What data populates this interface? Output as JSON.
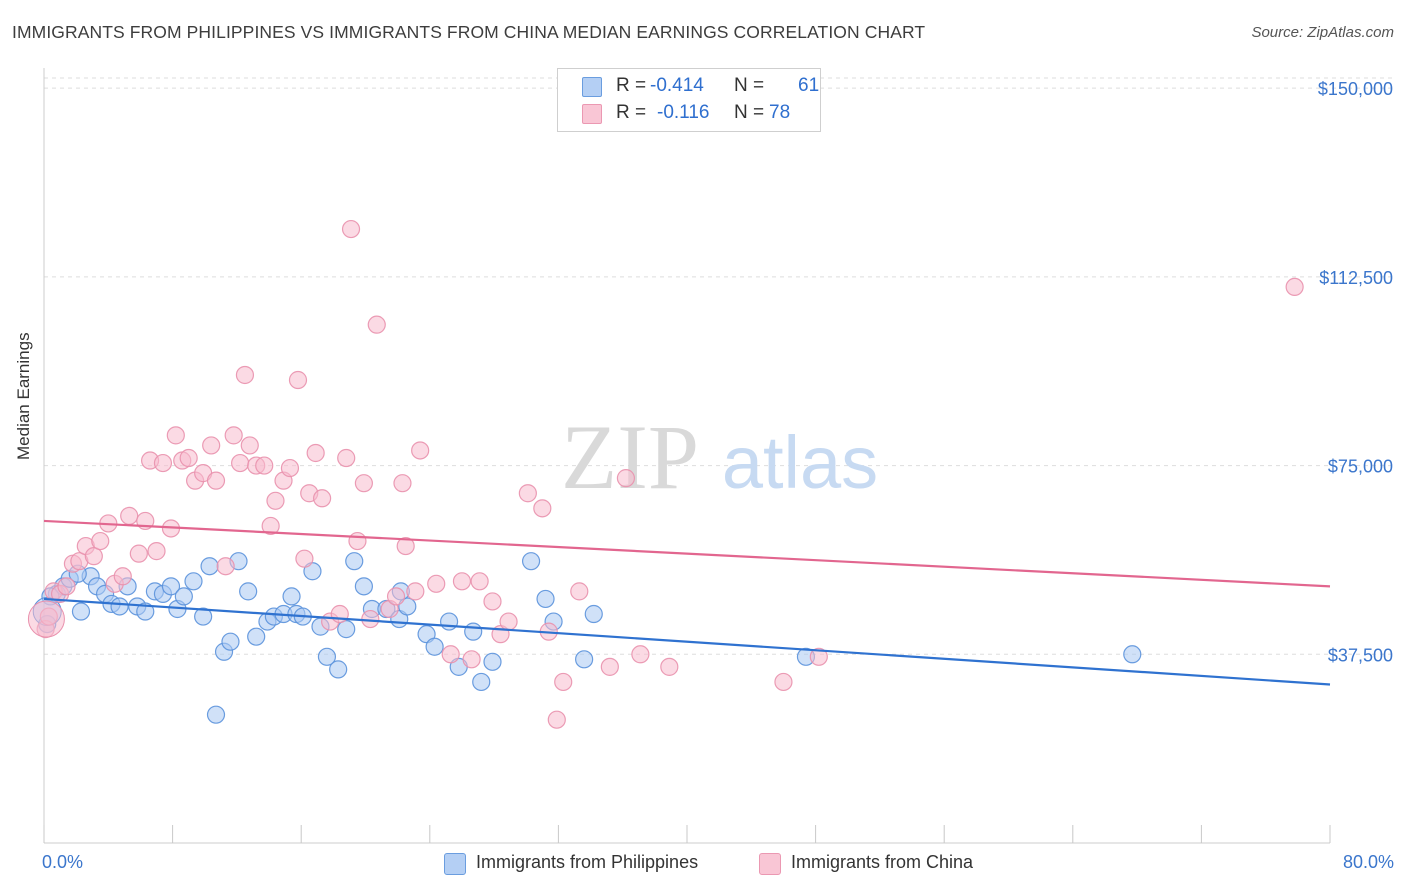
{
  "header": {
    "title": "IMMIGRANTS FROM PHILIPPINES VS IMMIGRANTS FROM CHINA MEDIAN EARNINGS CORRELATION CHART",
    "source": "Source: ZipAtlas.com"
  },
  "watermark": {
    "zip": "ZIP",
    "atlas": "atlas"
  },
  "legend_top": {
    "rows": [
      {
        "r_label": "R =",
        "r_value": "-0.414",
        "n_label": "N =",
        "n_value": "61"
      },
      {
        "r_label": "R =",
        "r_value": "-0.116",
        "n_label": "N =",
        "n_value": "78"
      }
    ]
  },
  "legend_bottom": {
    "items": [
      {
        "label": "Immigrants from Philippines"
      },
      {
        "label": "Immigrants from China"
      }
    ]
  },
  "colors": {
    "philippines_fill": "#a9c8f2",
    "philippines_stroke": "#5b92dc",
    "philippines_line": "#2f72d0",
    "china_fill": "#f7bccd",
    "china_stroke": "#e991ad",
    "china_line": "#e2668f",
    "axis_text": "#3b76cc",
    "grid": "#dddddd"
  },
  "chart_data": {
    "type": "scatter",
    "title": "IMMIGRANTS FROM PHILIPPINES VS IMMIGRANTS FROM CHINA MEDIAN EARNINGS CORRELATION CHART",
    "xlabel": "",
    "ylabel": "Median Earnings",
    "xlim": [
      0,
      80
    ],
    "ylim": [
      0,
      154000
    ],
    "x_tick_labels": [
      "0.0%",
      "80.0%"
    ],
    "y_ticks": [
      37500,
      75000,
      112500,
      150000
    ],
    "y_tick_labels": [
      "$37,500",
      "$75,000",
      "$112,500",
      "$150,000"
    ],
    "grid": "horizontal dashed",
    "legend": "top-center",
    "series": [
      {
        "name": "Immigrants from Philippines",
        "R": -0.414,
        "N": 61,
        "trend": {
          "x": [
            0,
            80
          ],
          "y": [
            48500,
            31500
          ]
        },
        "points": [
          [
            0.2,
            43500
          ],
          [
            0.8,
            49500
          ],
          [
            1.2,
            51000
          ],
          [
            1.6,
            52500
          ],
          [
            2.3,
            46000
          ],
          [
            2.9,
            53000
          ],
          [
            3.3,
            51000
          ],
          [
            3.8,
            49500
          ],
          [
            4.2,
            47500
          ],
          [
            4.7,
            47000
          ],
          [
            5.2,
            51000
          ],
          [
            5.8,
            47000
          ],
          [
            6.3,
            46000
          ],
          [
            6.9,
            50000
          ],
          [
            7.4,
            49500
          ],
          [
            7.9,
            51000
          ],
          [
            8.3,
            46500
          ],
          [
            8.7,
            49000
          ],
          [
            9.3,
            52000
          ],
          [
            9.9,
            45000
          ],
          [
            10.3,
            55000
          ],
          [
            11.2,
            38000
          ],
          [
            11.6,
            40000
          ],
          [
            12.7,
            50000
          ],
          [
            12.1,
            56000
          ],
          [
            13.2,
            41000
          ],
          [
            13.9,
            44000
          ],
          [
            14.3,
            45000
          ],
          [
            14.9,
            45500
          ],
          [
            15.4,
            49000
          ],
          [
            15.7,
            45500
          ],
          [
            16.1,
            45000
          ],
          [
            16.7,
            54000
          ],
          [
            17.2,
            43000
          ],
          [
            18.3,
            34500
          ],
          [
            18.8,
            42500
          ],
          [
            19.3,
            56000
          ],
          [
            17.6,
            37000
          ],
          [
            19.9,
            51000
          ],
          [
            20.4,
            46500
          ],
          [
            21.3,
            46500
          ],
          [
            22.1,
            44500
          ],
          [
            22.6,
            47000
          ],
          [
            22.2,
            50000
          ],
          [
            23.8,
            41500
          ],
          [
            24.3,
            39000
          ],
          [
            25.2,
            44000
          ],
          [
            25.8,
            35000
          ],
          [
            26.7,
            42000
          ],
          [
            27.9,
            36000
          ],
          [
            27.2,
            32000
          ],
          [
            30.3,
            56000
          ],
          [
            31.2,
            48500
          ],
          [
            31.7,
            44000
          ],
          [
            33.6,
            36500
          ],
          [
            34.2,
            45500
          ],
          [
            47.4,
            37000
          ],
          [
            67.7,
            37500
          ],
          [
            0.4,
            49000
          ],
          [
            2.1,
            53500
          ],
          [
            10.7,
            25500
          ]
        ]
      },
      {
        "name": "Immigrants from China",
        "R": -0.116,
        "N": 78,
        "trend": {
          "x": [
            0,
            80
          ],
          "y": [
            64000,
            51000
          ]
        },
        "points": [
          [
            0.1,
            42500
          ],
          [
            0.6,
            50000
          ],
          [
            1.0,
            49500
          ],
          [
            1.4,
            51000
          ],
          [
            1.8,
            55500
          ],
          [
            2.2,
            56000
          ],
          [
            2.6,
            59000
          ],
          [
            3.1,
            57000
          ],
          [
            3.5,
            60000
          ],
          [
            4.0,
            63500
          ],
          [
            4.4,
            51500
          ],
          [
            4.9,
            53000
          ],
          [
            5.3,
            65000
          ],
          [
            5.9,
            57500
          ],
          [
            6.3,
            64000
          ],
          [
            6.6,
            76000
          ],
          [
            7.0,
            58000
          ],
          [
            7.4,
            75500
          ],
          [
            7.9,
            62500
          ],
          [
            8.2,
            81000
          ],
          [
            8.6,
            76000
          ],
          [
            9.0,
            76500
          ],
          [
            9.4,
            72000
          ],
          [
            9.9,
            73500
          ],
          [
            10.4,
            79000
          ],
          [
            10.7,
            72000
          ],
          [
            11.3,
            55000
          ],
          [
            11.8,
            81000
          ],
          [
            12.2,
            75500
          ],
          [
            12.5,
            93000
          ],
          [
            12.8,
            79000
          ],
          [
            13.2,
            75000
          ],
          [
            13.7,
            75000
          ],
          [
            14.1,
            63000
          ],
          [
            14.4,
            68000
          ],
          [
            14.9,
            72000
          ],
          [
            15.3,
            74500
          ],
          [
            15.8,
            92000
          ],
          [
            16.2,
            56500
          ],
          [
            16.5,
            69500
          ],
          [
            16.9,
            77500
          ],
          [
            17.3,
            68500
          ],
          [
            17.8,
            44000
          ],
          [
            18.4,
            45500
          ],
          [
            18.8,
            76500
          ],
          [
            19.1,
            122000
          ],
          [
            19.5,
            60000
          ],
          [
            19.9,
            71500
          ],
          [
            20.3,
            44500
          ],
          [
            20.7,
            103000
          ],
          [
            21.5,
            46500
          ],
          [
            21.9,
            49000
          ],
          [
            22.3,
            71500
          ],
          [
            22.5,
            59000
          ],
          [
            23.1,
            50000
          ],
          [
            23.4,
            78000
          ],
          [
            24.4,
            51500
          ],
          [
            25.3,
            37500
          ],
          [
            26.0,
            52000
          ],
          [
            26.6,
            36500
          ],
          [
            27.1,
            52000
          ],
          [
            27.9,
            48000
          ],
          [
            28.4,
            41500
          ],
          [
            28.9,
            44000
          ],
          [
            30.1,
            69500
          ],
          [
            31.0,
            66500
          ],
          [
            31.4,
            42000
          ],
          [
            31.9,
            24500
          ],
          [
            32.3,
            32000
          ],
          [
            33.3,
            50000
          ],
          [
            35.2,
            35000
          ],
          [
            36.2,
            72500
          ],
          [
            37.1,
            37500
          ],
          [
            38.9,
            35000
          ],
          [
            46.0,
            32000
          ],
          [
            48.2,
            37000
          ],
          [
            77.8,
            110500
          ],
          [
            0.3,
            45000
          ]
        ]
      }
    ]
  }
}
